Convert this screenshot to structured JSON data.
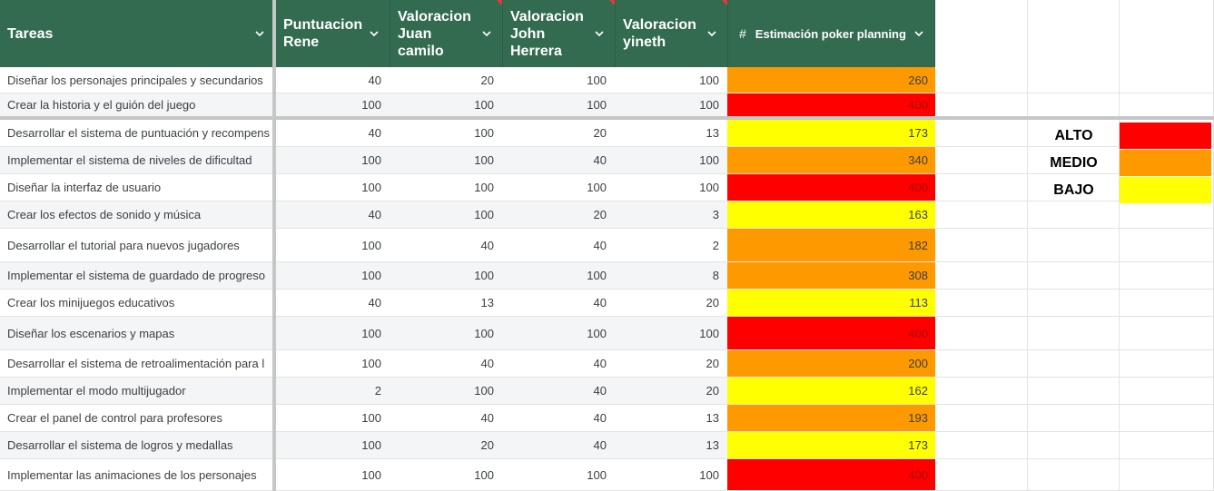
{
  "headers": {
    "tareas": "Tareas",
    "rene": "Puntuacion Rene",
    "juan": "Valoracion Juan camilo",
    "john": "Valoracion John Herrera",
    "yineth": "Valoracion yineth",
    "hash": "#",
    "estimacion": "Estimación poker planning"
  },
  "colors": {
    "header_bg": "#326b4f",
    "alto": "#ff0000",
    "medio": "#ff9900",
    "bajo": "#ffff00"
  },
  "rows": [
    {
      "task": "Diseñar los personajes principales y secundarios",
      "rene": "40",
      "juan": "20",
      "john": "100",
      "yineth": "100",
      "est": "260",
      "level": "medio"
    },
    {
      "task": "Crear la historia y el guión del juego",
      "rene": "100",
      "juan": "100",
      "john": "100",
      "yineth": "100",
      "est": "400",
      "level": "alto"
    },
    {
      "task": "Desarrollar el sistema de puntuación y recompens",
      "rene": "40",
      "juan": "100",
      "john": "20",
      "yineth": "13",
      "est": "173",
      "level": "bajo"
    },
    {
      "task": "Implementar el sistema de niveles de dificultad",
      "rene": "100",
      "juan": "100",
      "john": "40",
      "yineth": "100",
      "est": "340",
      "level": "medio"
    },
    {
      "task": "Diseñar la interfaz de usuario",
      "rene": "100",
      "juan": "100",
      "john": "100",
      "yineth": "100",
      "est": "400",
      "level": "alto"
    },
    {
      "task": "Crear los efectos de sonido y música",
      "rene": "40",
      "juan": "100",
      "john": "20",
      "yineth": "3",
      "est": "163",
      "level": "bajo"
    },
    {
      "task": "Desarrollar el tutorial para nuevos jugadores",
      "rene": "100",
      "juan": "40",
      "john": "40",
      "yineth": "2",
      "est": "182",
      "level": "medio"
    },
    {
      "task": "Implementar el sistema de guardado de progreso",
      "rene": "100",
      "juan": "100",
      "john": "100",
      "yineth": "8",
      "est": "308",
      "level": "medio"
    },
    {
      "task": "Crear los minijuegos educativos",
      "rene": "40",
      "juan": "13",
      "john": "40",
      "yineth": "20",
      "est": "113",
      "level": "bajo"
    },
    {
      "task": "Diseñar los escenarios y mapas",
      "rene": "100",
      "juan": "100",
      "john": "100",
      "yineth": "100",
      "est": "400",
      "level": "alto"
    },
    {
      "task": "Desarrollar el sistema de retroalimentación para l",
      "rene": "100",
      "juan": "40",
      "john": "40",
      "yineth": "20",
      "est": "200",
      "level": "medio"
    },
    {
      "task": "Implementar el modo multijugador",
      "rene": "2",
      "juan": "100",
      "john": "40",
      "yineth": "20",
      "est": "162",
      "level": "bajo"
    },
    {
      "task": "Crear el panel de control para profesores",
      "rene": "100",
      "juan": "40",
      "john": "40",
      "yineth": "13",
      "est": "193",
      "level": "medio"
    },
    {
      "task": "Desarrollar el sistema de logros y medallas",
      "rene": "100",
      "juan": "20",
      "john": "40",
      "yineth": "13",
      "est": "173",
      "level": "bajo"
    },
    {
      "task": "Implementar las animaciones de los personajes",
      "rene": "100",
      "juan": "100",
      "john": "100",
      "yineth": "100",
      "est": "400",
      "level": "alto"
    }
  ],
  "legend": {
    "alto": "ALTO",
    "medio": "MEDIO",
    "bajo": "BAJO"
  }
}
